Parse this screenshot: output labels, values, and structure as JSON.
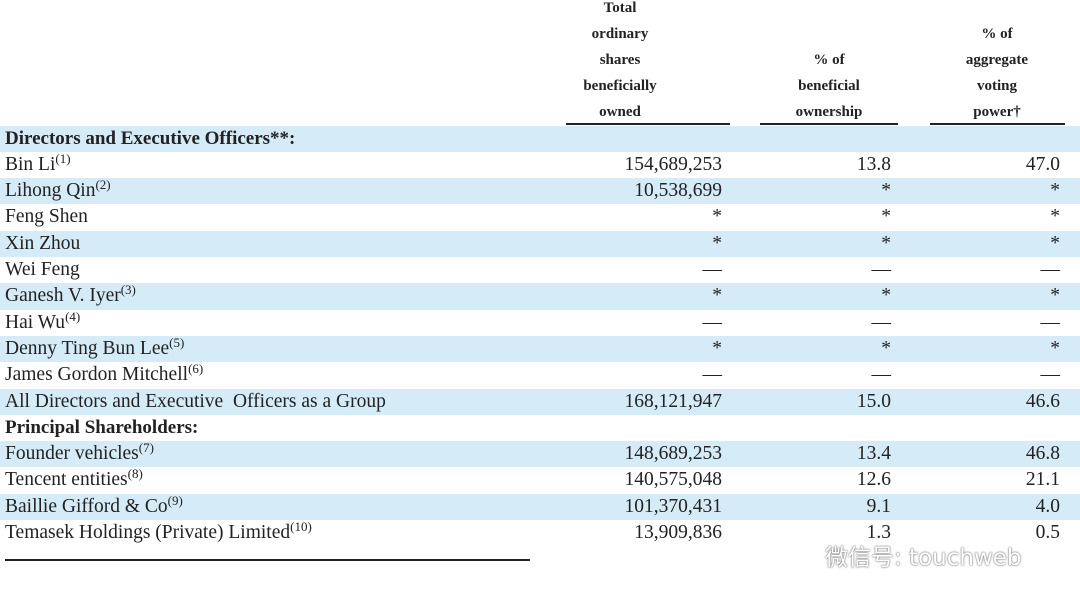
{
  "header": {
    "columns": [
      {
        "lines": [
          "Total",
          "ordinary",
          "shares",
          "beneficially",
          "owned"
        ]
      },
      {
        "lines": [
          "% of",
          "beneficial",
          "ownership"
        ]
      },
      {
        "lines": [
          "% of",
          "aggregate",
          "voting",
          "power†"
        ]
      }
    ]
  },
  "table": {
    "rows": [
      {
        "name": "Directors and Executive Officers**:",
        "section": true
      },
      {
        "name": "Bin Li",
        "note": "(1)",
        "values": [
          "154,689,253",
          "13.8",
          "47.0"
        ]
      },
      {
        "name": "Lihong Qin",
        "note": "(2)",
        "values": [
          "10,538,699",
          "*",
          "*"
        ]
      },
      {
        "name": "Feng Shen",
        "values": [
          "*",
          "*",
          "*"
        ]
      },
      {
        "name": "Xin Zhou",
        "values": [
          "*",
          "*",
          "*"
        ]
      },
      {
        "name": "Wei Feng",
        "values": [
          "—",
          "—",
          "—"
        ]
      },
      {
        "name": "Ganesh V. Iyer",
        "note": "(3)",
        "values": [
          "*",
          "*",
          "*"
        ]
      },
      {
        "name": "Hai Wu",
        "note": "(4)",
        "values": [
          "—",
          "—",
          "—"
        ]
      },
      {
        "name": "Denny Ting Bun Lee",
        "note": "(5)",
        "values": [
          "*",
          "*",
          "*"
        ]
      },
      {
        "name": "James Gordon Mitchell",
        "note": "(6)",
        "values": [
          "—",
          "—",
          "—"
        ]
      },
      {
        "name": "All Directors and Executive  Officers as a Group",
        "values": [
          "168,121,947",
          "15.0",
          "46.6"
        ]
      },
      {
        "name": "Principal Shareholders:",
        "section": true
      },
      {
        "name": "Founder vehicles",
        "note": "(7)",
        "values": [
          "148,689,253",
          "13.4",
          "46.8"
        ]
      },
      {
        "name": "Tencent entities",
        "note": "(8)",
        "values": [
          "140,575,048",
          "12.6",
          "21.1"
        ]
      },
      {
        "name": "Baillie Gifford & Co",
        "note": "(9)",
        "values": [
          "101,370,431",
          "9.1",
          "4.0"
        ]
      },
      {
        "name": "Temasek Holdings (Private) Limited",
        "note": "(10)",
        "values": [
          "13,909,836",
          "1.3",
          "0.5"
        ]
      }
    ]
  },
  "watermark": "微信号: touchweb"
}
